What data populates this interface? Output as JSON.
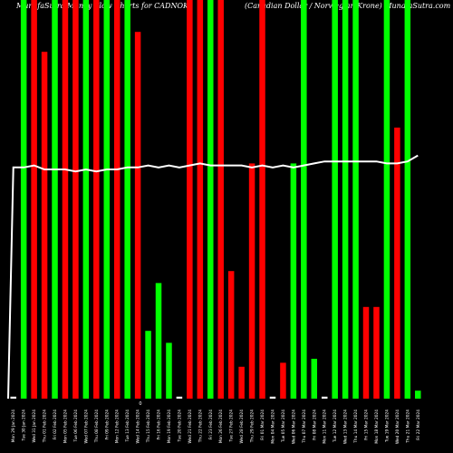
{
  "chart_data": {
    "type": "bar",
    "title": "MunafaSutra Money Flow  Charts for CADNOK",
    "subtitle": "(Canadian  Dollar / Norwegian Krone) MunafaSutra.com",
    "xlabel": "",
    "ylabel": "",
    "ylim": [
      0,
      100
    ],
    "grid": false,
    "legend": "none",
    "colors": {
      "up": "#00ff00",
      "down": "#ff0000",
      "neutral": "#ffffff",
      "line": "#ffffff",
      "background": "#000000"
    },
    "categories": [
      "Mon 29 Jan 2024",
      "Tue 30 Jan 2024",
      "Wed 31 Jan 2024",
      "Thu 01 Feb 2024",
      "Fri 02 Feb 2024",
      "Mon 05 Feb 2024",
      "Tue 06 Feb 2024",
      "Wed 07 Feb 2024",
      "Thu 08 Feb 2024",
      "Fri 09 Feb 2024",
      "Mon 12 Feb 2024",
      "Tue 13 Feb 2024",
      "Wed 14 Feb 2024",
      "Thu 15 Feb 2024",
      "Fri 16 Feb 2024",
      "Mon 19 Feb 2024",
      "Tue 20 Feb 2024",
      "Wed 21 Feb 2024",
      "Thu 22 Feb 2024",
      "Fri 23 Feb 2024",
      "Mon 26 Feb 2024",
      "Tue 27 Feb 2024",
      "Wed 28 Feb 2024",
      "Thu 29 Feb 2024",
      "Fri 01 Mar 2024",
      "Mon 04 Mar 2024",
      "Tue 05 Mar 2024",
      "Wed 06 Mar 2024",
      "Thu 07 Mar 2024",
      "Fri 08 Mar 2024",
      "Mon 11 Mar 2024",
      "Tue 12 Mar 2024",
      "Wed 13 Mar 2024",
      "Thu 14 Mar 2024",
      "Fri 15 Mar 2024",
      "Mon 18 Mar 2024",
      "Tue 19 Mar 2024",
      "Wed 20 Mar 2024",
      "Thu 21 Mar 2024",
      "Fri 22 Mar 2024"
    ],
    "values": [
      0.5,
      100,
      100,
      87,
      100,
      100,
      100,
      100,
      100,
      100,
      100,
      100,
      92,
      17,
      29,
      14,
      0.5,
      100,
      100,
      100,
      100,
      32,
      8,
      59,
      100,
      0.5,
      9,
      59,
      100,
      10,
      0.5,
      100,
      100,
      100,
      23,
      23,
      100,
      68,
      100,
      2
    ],
    "directions": [
      "neutral",
      "up",
      "down",
      "down",
      "up",
      "down",
      "down",
      "up",
      "down",
      "up",
      "down",
      "up",
      "down",
      "up",
      "up",
      "up",
      "neutral",
      "down",
      "down",
      "up",
      "down",
      "down",
      "down",
      "down",
      "down",
      "neutral",
      "down",
      "up",
      "up",
      "up",
      "neutral",
      "up",
      "up",
      "up",
      "down",
      "down",
      "up",
      "down",
      "up",
      "up"
    ],
    "line_values": [
      58,
      58,
      58.5,
      57.5,
      57.5,
      57.5,
      57,
      57.5,
      57,
      57.5,
      57.5,
      58,
      58,
      58.5,
      58,
      58.5,
      58,
      58.5,
      59,
      58.5,
      58.5,
      58.5,
      58.5,
      58,
      58.5,
      58,
      58.5,
      58,
      58.5,
      59,
      59.5,
      59.5,
      59.5,
      59.5,
      59.5,
      59.5,
      59,
      59,
      59.5,
      61
    ],
    "zero_label": "0"
  }
}
